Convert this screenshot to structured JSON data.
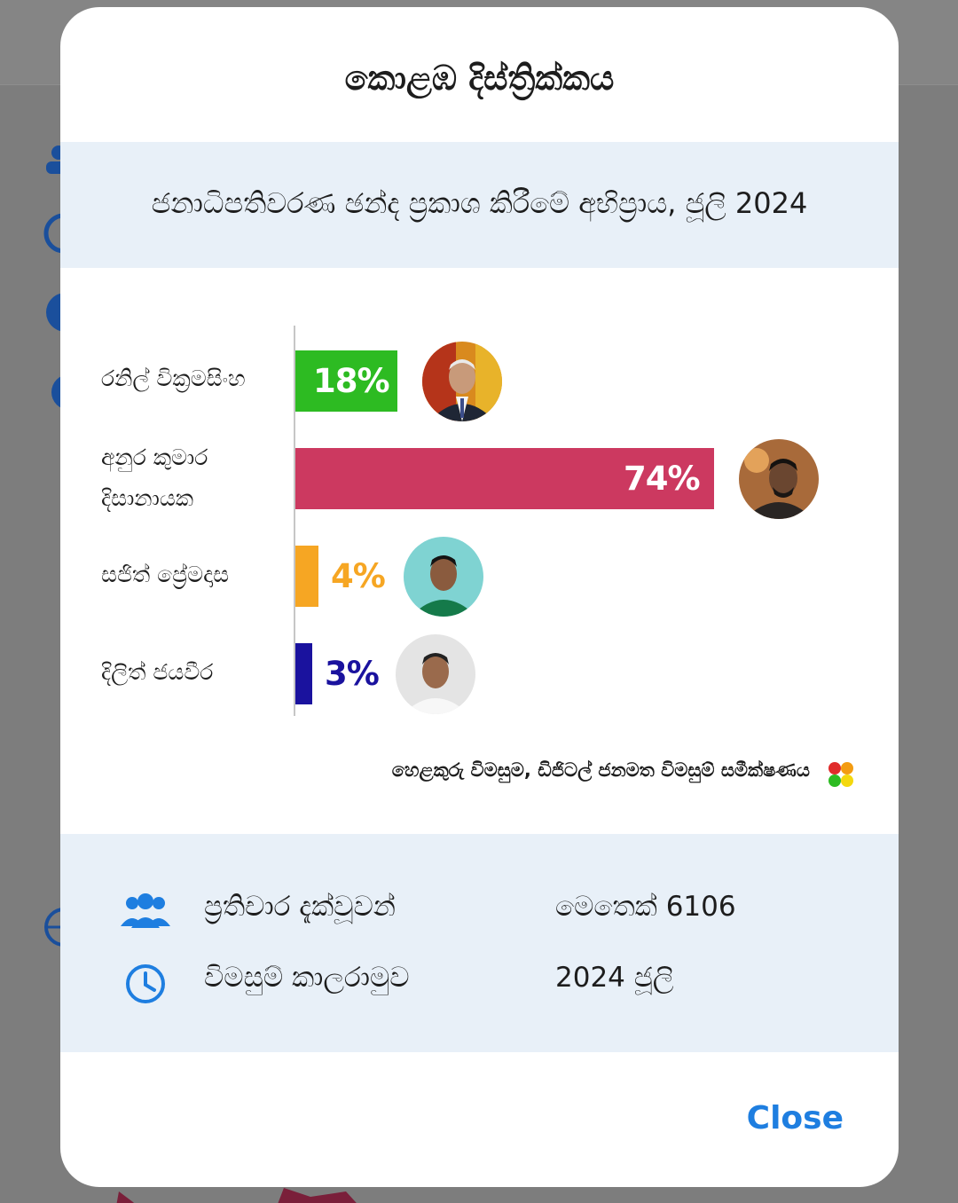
{
  "modal": {
    "title": "කොළඹ දිස්ත්‍රික්කය",
    "subtitle": "ජනාධිපතිවරණ ඡන්ද ප්‍රකාශ කිරීමේ අභිප්‍රාය, ජූලි 2024",
    "source": "හෙළකුරු විමසුම, ඩිජිටල් ජනමත විමසුම් සමීක්ෂණය",
    "close_label": "Close"
  },
  "chart_data": {
    "type": "bar",
    "orientation": "horizontal",
    "categories": [
      "රනිල් වික්‍රමසිංහ",
      "අනුර කුමාර දිසානායක",
      "සජිත් ප්‍රේමදාස",
      "දිලිත් ජයවීර"
    ],
    "values": [
      18,
      74,
      4,
      3
    ],
    "value_labels": [
      "18%",
      "74%",
      "4%",
      "3%"
    ],
    "colors": [
      "#2dbb22",
      "#cc3960",
      "#f6a623",
      "#1a129e"
    ],
    "xlim": [
      0,
      100
    ],
    "grid": false
  },
  "info": {
    "respondents_label": "ප්‍රතිචාර දැක්වූවන්",
    "respondents_value": "මෙතෙක් 6106",
    "period_label": "විමසුම් කාලරාමුව",
    "period_value": "2024 ජූලි"
  },
  "icons": {
    "respondents": "people-icon",
    "period": "clock-icon",
    "brand": "colored-dots-icon"
  },
  "colors": {
    "accent": "#1e7ee0",
    "band": "#e8f0f8"
  }
}
